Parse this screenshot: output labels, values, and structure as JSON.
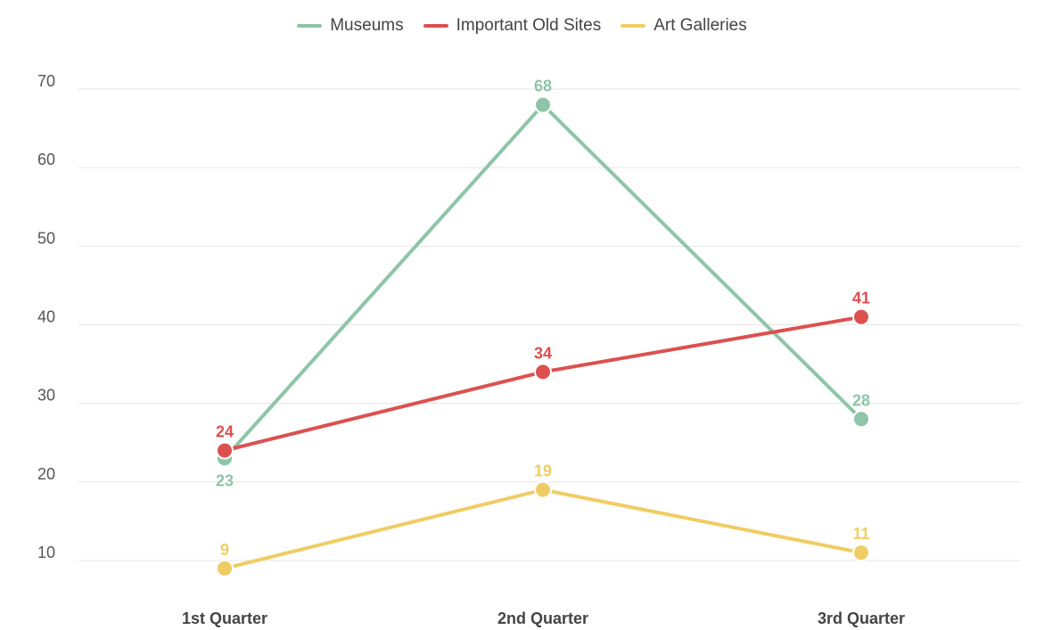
{
  "chart_data": {
    "type": "line",
    "title": "",
    "xlabel": "",
    "ylabel": "",
    "categories": [
      "1st Quarter",
      "2nd Quarter",
      "3rd Quarter"
    ],
    "ylim": [
      10,
      70
    ],
    "yticks": [
      10,
      20,
      30,
      40,
      50,
      60,
      70
    ],
    "grid": true,
    "legend_position": "top-center",
    "series": [
      {
        "name": "Museums",
        "color": "#8ec5a8",
        "values": [
          23,
          68,
          28
        ]
      },
      {
        "name": "Important Old Sites",
        "color": "#dc5050",
        "values": [
          24,
          34,
          41
        ]
      },
      {
        "name": "Art Galleries",
        "color": "#f0cd64",
        "values": [
          9,
          19,
          11
        ]
      }
    ]
  }
}
